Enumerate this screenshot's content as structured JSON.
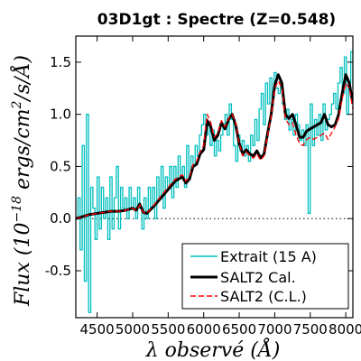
{
  "chart_data": {
    "type": "line",
    "title": "03D1gt : Spectre (Z=0.548)",
    "xlabel": "λ observé (Å)",
    "ylabel_parts": {
      "prefix": "Flux (10",
      "exponent": "−18",
      "units": " ergs/cm",
      "units_exp": "2",
      "suffix": "/s/Å)"
    },
    "xlim": [
      4200,
      8100
    ],
    "ylim": [
      -0.95,
      1.75
    ],
    "xticks": [
      4500,
      5000,
      5500,
      6000,
      6500,
      7000,
      7500,
      8000
    ],
    "xtick_labels": [
      "4500",
      "5000",
      "5500",
      "6000",
      "6500",
      "7000",
      "7500",
      "8000"
    ],
    "yticks": [
      -0.5,
      0.0,
      0.5,
      1.0,
      1.5
    ],
    "ytick_labels": [
      "-0.5",
      "0.0",
      "0.5",
      "1.0",
      "1.5"
    ],
    "zero_line": true,
    "legend_position": "lower-right",
    "series": [
      {
        "name": "Extrait (15 A)",
        "color": "#00bfbf",
        "style": "steps",
        "x": [
          4200,
          4230,
          4260,
          4290,
          4320,
          4350,
          4380,
          4410,
          4440,
          4470,
          4500,
          4530,
          4560,
          4590,
          4620,
          4650,
          4680,
          4710,
          4740,
          4770,
          4800,
          4830,
          4860,
          4890,
          4920,
          4950,
          4980,
          5010,
          5040,
          5070,
          5100,
          5130,
          5160,
          5190,
          5220,
          5250,
          5280,
          5310,
          5340,
          5370,
          5400,
          5430,
          5460,
          5490,
          5520,
          5550,
          5580,
          5610,
          5640,
          5670,
          5700,
          5730,
          5760,
          5790,
          5820,
          5850,
          5880,
          5910,
          5940,
          5970,
          6000,
          6030,
          6060,
          6090,
          6120,
          6150,
          6180,
          6210,
          6240,
          6270,
          6300,
          6330,
          6360,
          6390,
          6420,
          6450,
          6480,
          6510,
          6540,
          6570,
          6600,
          6630,
          6660,
          6690,
          6720,
          6750,
          6780,
          6810,
          6840,
          6870,
          6900,
          6930,
          6960,
          6990,
          7020,
          7050,
          7080,
          7110,
          7140,
          7170,
          7200,
          7230,
          7260,
          7290,
          7320,
          7350,
          7380,
          7410,
          7440,
          7470,
          7500,
          7530,
          7560,
          7590,
          7620,
          7650,
          7680,
          7710,
          7740,
          7770,
          7800,
          7830,
          7860,
          7890,
          7920,
          7950,
          7980,
          8010,
          8040,
          8070,
          8100
        ],
        "y": [
          0.0,
          0.2,
          -0.3,
          0.7,
          -0.6,
          1.0,
          -0.9,
          0.3,
          0.1,
          -0.2,
          0.4,
          -0.1,
          0.3,
          0.0,
          0.2,
          -0.2,
          0.4,
          -0.1,
          0.2,
          0.5,
          -0.1,
          0.3,
          0.1,
          0.2,
          0.0,
          0.3,
          0.1,
          0.2,
          0.0,
          0.3,
          0.1,
          -0.1,
          0.2,
          0.0,
          0.3,
          0.1,
          0.3,
          0.0,
          0.4,
          0.2,
          0.5,
          0.1,
          0.4,
          0.3,
          0.5,
          0.2,
          0.5,
          0.3,
          0.6,
          0.4,
          0.5,
          0.3,
          0.7,
          0.4,
          0.6,
          0.5,
          0.7,
          0.6,
          0.8,
          0.9,
          1.0,
          0.8,
          0.9,
          0.7,
          0.85,
          0.6,
          0.75,
          0.65,
          0.8,
          0.9,
          1.0,
          0.8,
          1.1,
          0.95,
          0.7,
          0.55,
          0.8,
          0.65,
          0.75,
          0.6,
          0.7,
          0.55,
          0.8,
          0.7,
          0.95,
          0.75,
          1.05,
          1.2,
          0.9,
          1.3,
          1.1,
          1.35,
          1.15,
          1.4,
          1.25,
          1.2,
          1.3,
          1.1,
          0.95,
          1.05,
          0.85,
          0.95,
          0.8,
          1.0,
          0.9,
          0.75,
          0.85,
          0.7,
          0.9,
          0.05,
          1.1,
          0.7,
          0.95,
          0.8,
          1.0,
          0.75,
          1.1,
          0.85,
          0.95,
          1.0,
          1.1,
          1.2,
          1.05,
          1.3,
          1.45,
          1.2,
          1.55,
          1.0,
          1.3,
          1.6,
          1.25
        ]
      },
      {
        "name": "SALT2 Cal.",
        "color": "#000000",
        "style": "solid",
        "x": [
          4200,
          4300,
          4400,
          4500,
          4600,
          4700,
          4800,
          4900,
          5000,
          5050,
          5100,
          5150,
          5200,
          5300,
          5400,
          5500,
          5600,
          5700,
          5750,
          5800,
          5850,
          5900,
          5950,
          6000,
          6050,
          6100,
          6150,
          6200,
          6250,
          6300,
          6350,
          6400,
          6450,
          6500,
          6550,
          6600,
          6650,
          6700,
          6750,
          6800,
          6850,
          6900,
          6950,
          7000,
          7050,
          7100,
          7150,
          7200,
          7250,
          7300,
          7350,
          7400,
          7450,
          7500,
          7550,
          7600,
          7650,
          7700,
          7750,
          7800,
          7850,
          7900,
          7950,
          8000,
          8050,
          8100
        ],
        "y": [
          0.0,
          0.02,
          0.04,
          0.05,
          0.06,
          0.07,
          0.07,
          0.08,
          0.1,
          0.08,
          0.14,
          0.06,
          0.05,
          0.12,
          0.2,
          0.28,
          0.36,
          0.4,
          0.34,
          0.38,
          0.5,
          0.52,
          0.62,
          0.66,
          0.94,
          0.88,
          0.75,
          0.8,
          0.92,
          0.86,
          0.95,
          1.0,
          0.9,
          0.72,
          0.62,
          0.66,
          0.62,
          0.6,
          0.65,
          0.58,
          0.62,
          0.82,
          1.0,
          1.28,
          1.38,
          1.3,
          1.0,
          0.96,
          1.0,
          0.9,
          0.78,
          0.78,
          0.84,
          0.86,
          0.88,
          0.9,
          0.92,
          1.0,
          0.9,
          0.88,
          0.9,
          1.0,
          1.2,
          1.38,
          1.3,
          1.1
        ]
      },
      {
        "name": "SALT2 (C.L.)",
        "color": "#ff0000",
        "style": "dashed",
        "x": [
          4200,
          4300,
          4400,
          4500,
          4600,
          4700,
          4800,
          4900,
          5000,
          5050,
          5100,
          5150,
          5200,
          5300,
          5400,
          5500,
          5600,
          5700,
          5750,
          5800,
          5850,
          5900,
          5950,
          6000,
          6050,
          6100,
          6150,
          6200,
          6250,
          6300,
          6350,
          6400,
          6450,
          6500,
          6550,
          6600,
          6650,
          6700,
          6750,
          6800,
          6850,
          6900,
          6950,
          7000,
          7050,
          7100,
          7150,
          7200,
          7250,
          7300,
          7350,
          7400,
          7450,
          7500,
          7550,
          7600,
          7650,
          7700,
          7750,
          7800,
          7850,
          7900,
          7950,
          8000,
          8050,
          8100
        ],
        "y": [
          0.0,
          0.02,
          0.04,
          0.05,
          0.06,
          0.07,
          0.07,
          0.08,
          0.1,
          0.08,
          0.13,
          0.06,
          0.05,
          0.13,
          0.22,
          0.3,
          0.38,
          0.42,
          0.36,
          0.4,
          0.52,
          0.55,
          0.64,
          0.7,
          1.0,
          0.92,
          0.78,
          0.82,
          0.94,
          0.88,
          0.96,
          1.0,
          0.92,
          0.72,
          0.6,
          0.64,
          0.6,
          0.58,
          0.62,
          0.56,
          0.6,
          0.8,
          0.98,
          1.25,
          1.32,
          1.25,
          0.96,
          0.9,
          0.92,
          0.8,
          0.72,
          0.7,
          0.76,
          0.78,
          0.76,
          0.78,
          0.8,
          0.82,
          0.76,
          0.82,
          0.88,
          0.96,
          1.15,
          1.3,
          1.25,
          1.05
        ]
      }
    ]
  }
}
